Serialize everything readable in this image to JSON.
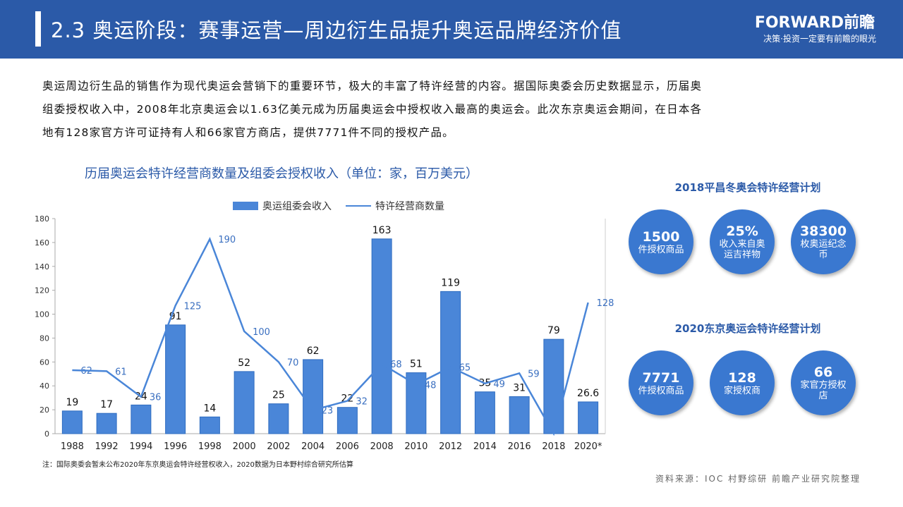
{
  "header": {
    "title": "2.3 奥运阶段：赛事运营—周边衍生品提升奥运品牌经济价值",
    "brand": "FORWARD前瞻",
    "slogan": "决策·投资一定要有前瞻的眼光"
  },
  "intro": [
    "奥运周边衍生品的销售作为现代奥运会营销下的重要环节，极大的丰富了特许经营的内容。据国际奥委会历史数据显示，历届奥",
    "组委授权收入中，2008年北京奥运会以1.63亿美元成为历届奥运会中授权收入最高的奥运会。此次东京奥运会期间，在日本各",
    "地有128家官方许可证持有人和66家官方商店，提供7771件不同的授权产品。"
  ],
  "chart_data": {
    "type": "bar",
    "title": "历届奥运会特许经营商数量及组委会授权收入（单位：家，百万美元）",
    "categories": [
      "1988",
      "1992",
      "1994",
      "1996",
      "1998",
      "2000",
      "2002",
      "2004",
      "2006",
      "2008",
      "2010",
      "2012",
      "2014",
      "2016",
      "2018",
      "2020*"
    ],
    "series": [
      {
        "name": "奥运组委会收入",
        "color": "#4a86d8",
        "values": [
          19,
          17,
          24,
          91,
          14,
          52,
          25,
          62,
          22,
          163,
          51,
          119,
          35,
          31,
          79,
          26.6
        ]
      },
      {
        "name": "特许经营商数量",
        "type": "line",
        "axis": "y2",
        "color": "#4a86d8",
        "values": [
          62,
          61,
          36,
          125,
          190,
          100,
          70,
          23,
          32,
          68,
          48,
          65,
          49,
          59,
          0,
          128
        ],
        "value_labels": [
          "62",
          "61",
          "36",
          "125",
          "190",
          "100",
          "70",
          "23",
          "32",
          "68",
          "48",
          "65",
          "49",
          "59",
          null,
          "128"
        ]
      }
    ],
    "ylim": [
      0,
      180
    ],
    "yticks": [
      0,
      20,
      40,
      60,
      80,
      100,
      120,
      140,
      160,
      180
    ],
    "y2lim": [
      0,
      210
    ],
    "legend": "top"
  },
  "note": "注：国际奥委会暂未公布2020年东京奥运会特许经营权收入，2020数据为日本野村综合研究所估算",
  "source": "资料来源：IOC 村野综研 前瞻产业研究院整理",
  "panels": [
    {
      "title": "2018平昌冬奥会特许经营计划",
      "circles": [
        {
          "value": "1500",
          "label": "件授权商品"
        },
        {
          "value": "25%",
          "label": "收入来自奥运吉祥物"
        },
        {
          "value": "38300",
          "label": "枚奥运纪念币"
        }
      ]
    },
    {
      "title": "2020东京奥运会特许经营计划",
      "circles": [
        {
          "value": "7771",
          "label": "件授权商品"
        },
        {
          "value": "128",
          "label": "家授权商"
        },
        {
          "value": "66",
          "label": "家官方授权店"
        }
      ]
    }
  ]
}
